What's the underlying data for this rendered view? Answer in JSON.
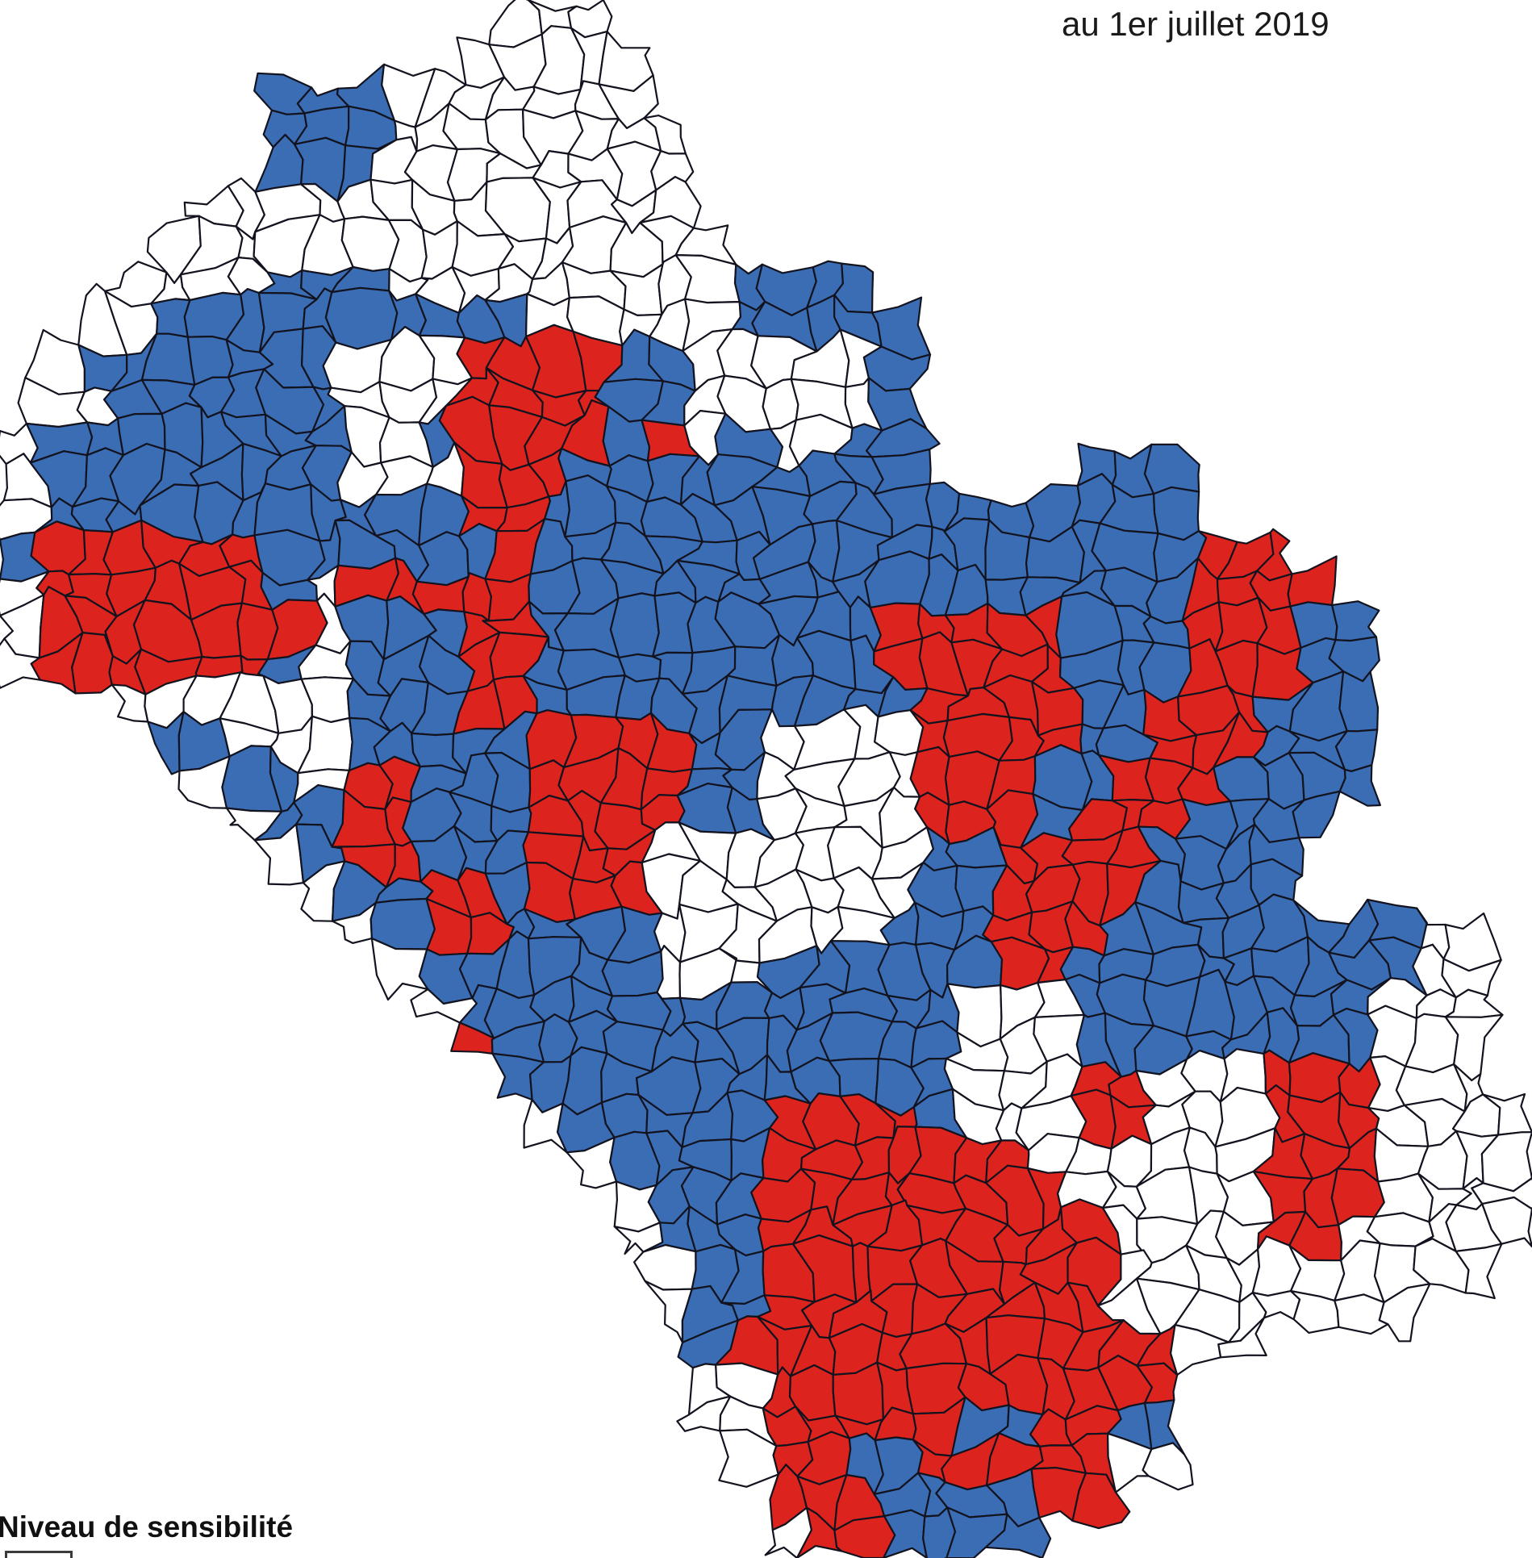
{
  "title": "au 1er juillet 2019",
  "legend": {
    "label": "Niveau de sensibilité"
  },
  "map": {
    "colors": {
      "blue": "#3a6db4",
      "red": "#dd231d",
      "white": "#ffffff",
      "border": "#13131f",
      "background": "#ffffff"
    },
    "grid_legend": {
      ".": "outside department (no commune)",
      "W": "white commune (level 0)",
      "B": "blue commune (level 1)",
      "R": "red commune (level 2)"
    },
    "cols": 40,
    "grid": [
      ".............WWW........................",
      "............WWWWW.......................",
      ".......BBBWWWWWWW.......................",
      ".......BBBWWWWWWWW......................",
      ".......BBBWWWWWWWW......................",
      ".....WWWWWWWWWWWWW......................",
      "....WWWWWWWWWWWWWWW.....................",
      "...WWWWBBBWWWWWWWWWBBBB.................",
      "..WWBBBBBBBBBBWWWWWBBBBB................",
      ".WBBBBBBBWWWRRRRBBWWWWWB................",
      ".WWBBBBBBWWWRRRRBBWWWWWB................",
      "WBBBBBBBBWWBRRRRBRWBWWBB................",
      "WBBBBBBBBWWWRRRBBBBBBBBB....BBB.........",
      "WBBBBBBBBBBBRRBBBBBBBBBBBBBBBBB.........",
      "BRRRRRRBBBBBBRBBBBBBBBBBBBBBBBBRRR......",
      "WRRRRRRBWRRRRRBBBBBBBBBBBBBBBBBRRRR.....",
      "WRRRRRRRWBBBRRBBBBBBBBBRRRRRBBBRRRBB....",
      "WRRRRRRBWBBBRRBBBBBBBBBRRRRRBBBRRRBB....",
      "...WWWWWWBBBRRBBBBBBBBBBRRRRBBRRRBBB....",
      "....BBWWWBBBBBRRRRBBWWWWRRRRBBRRRBBB....",
      ".....WBBWRRBBBRRRRBBWWWWRRRBBRRRBBBB....",
      "......WBBRRBBBRRRRBBWWWWRRRBRRRBBBB.....",
      ".......WBRRBBBRRRWWWWWWWBBRRRRBBBB......",
      "........WBBRRBRRRWWWWWWWBBRRRRBBBB......",
      ".........WBRRBBBBWWWWWWBBBRRRBBBBBBBBWW.",
      "..........WBBBBBBWWWBBBBBBRRBBBBBBBBBWW.",
      "...........WBBBBBBBBBBBBBWWWBBBBBBBBWWW.",
      "............RBBBBBBBBBBBBWWWBBBBBBBBWWW.",
      ".............BBBBBBBBBBBBWWWRRWWWRRRWWW.",
      "..............WBBBBBRRRRBWWWRRWWWRRRWWWW",
      "...............WBBBBRRRRRRRWWWWWWRRRWWWW",
      "................WBBBRRRRRRRRWWWWWRRRWWWW",
      "................WBBBRRRRRRRRRWWWWRRWWWWW",
      ".................WBBRRRRRRRRRWWWWWWWWWW.",
      ".................WBBRRRRRRRRRWWWWWWWW...",
      "..................BRRRRRRRRRRRRWW.......",
      "..................WWRRRRRRRRRRR.........",
      "..................WWRRRRRBBRRBB.........",
      "...................WRRBBRRRRRWW.........",
      "....................RRRBBBBRR...........",
      "....................WRRBBBB............."
    ]
  }
}
